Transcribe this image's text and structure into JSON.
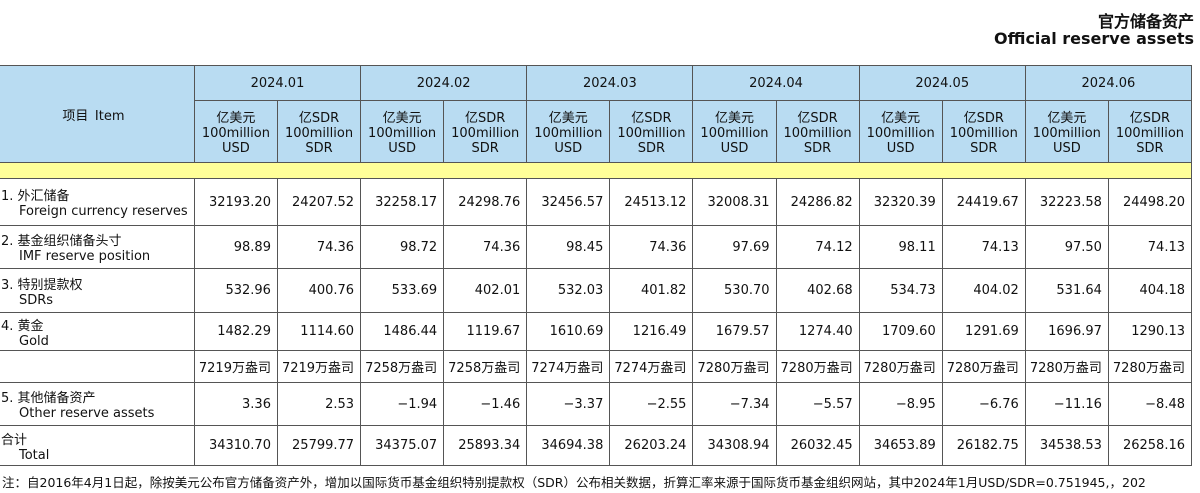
{
  "header": {
    "title_cn": "官方储备资产",
    "title_en": "Official reserve assets"
  },
  "table": {
    "item_header": {
      "cn": "项目",
      "en": "Item"
    },
    "months": [
      "2024.01",
      "2024.02",
      "2024.03",
      "2024.04",
      "2024.05",
      "2024.06"
    ],
    "units": [
      {
        "cn": "亿美元",
        "en1": "100million",
        "en2": "USD"
      },
      {
        "cn": "亿SDR",
        "en1": "100million",
        "en2": "SDR"
      }
    ],
    "rows": [
      {
        "label_cn": "1. 外汇储备",
        "label_en": "Foreign currency reserves",
        "cells": [
          "32193.20",
          "24207.52",
          "32258.17",
          "24298.76",
          "32456.57",
          "24513.12",
          "32008.31",
          "24286.82",
          "32320.39",
          "24419.67",
          "32223.58",
          "24498.20"
        ]
      },
      {
        "label_cn": "2. 基金组织储备头寸",
        "label_en": "IMF reserve position",
        "cells": [
          "98.89",
          "74.36",
          "98.72",
          "74.36",
          "98.45",
          "74.36",
          "97.69",
          "74.12",
          "98.11",
          "74.13",
          "97.50",
          "74.13"
        ]
      },
      {
        "label_cn": "3. 特别提款权",
        "label_en": "SDRs",
        "cells": [
          "532.96",
          "400.76",
          "533.69",
          "402.01",
          "532.03",
          "401.82",
          "530.70",
          "402.68",
          "534.73",
          "404.02",
          "531.64",
          "404.18"
        ]
      },
      {
        "label_cn": "4. 黄金",
        "label_en": "Gold",
        "cells": [
          "1482.29",
          "1114.60",
          "1486.44",
          "1119.67",
          "1610.69",
          "1216.49",
          "1679.57",
          "1274.40",
          "1709.60",
          "1291.69",
          "1696.97",
          "1290.13"
        ]
      },
      {
        "cells": [
          "7219万盎司",
          "7219万盎司",
          "7258万盎司",
          "7258万盎司",
          "7274万盎司",
          "7274万盎司",
          "7280万盎司",
          "7280万盎司",
          "7280万盎司",
          "7280万盎司",
          "7280万盎司",
          "7280万盎司"
        ]
      },
      {
        "label_cn": "5. 其他储备资产",
        "label_en": "Other reserve assets",
        "cells": [
          "3.36",
          "2.53",
          "−1.94",
          "−1.46",
          "−3.37",
          "−2.55",
          "−7.34",
          "−5.57",
          "−8.95",
          "−6.76",
          "−11.16",
          "−8.48"
        ]
      },
      {
        "label_cn": "合计",
        "label_en": "Total",
        "cells": [
          "34310.70",
          "25799.77",
          "34375.07",
          "25893.34",
          "34694.38",
          "26203.24",
          "34308.94",
          "26032.45",
          "34653.89",
          "26182.75",
          "34538.53",
          "26258.16"
        ]
      }
    ]
  },
  "note": "注：自2016年4月1日起，除按美元公布官方储备资产外，增加以国际货币基金组织特别提款权（SDR）公布相关数据，折算汇率来源于国际货币基金组织网站，其中2024年1月USD/SDR=0.751945,，202"
}
